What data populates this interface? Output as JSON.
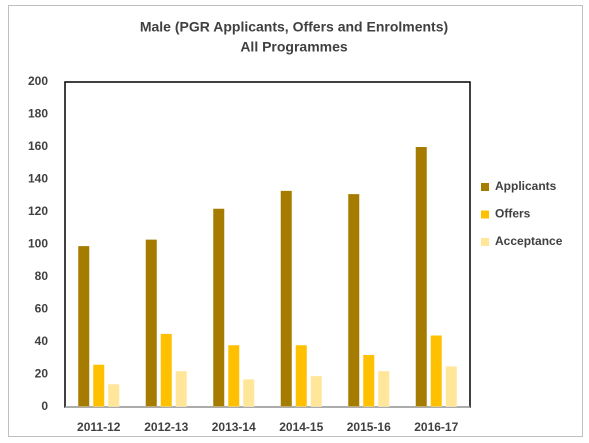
{
  "chart_data": {
    "type": "bar",
    "title": "Male (PGR Applicants, Offers  and Enrolments)",
    "subtitle": "All Programmes",
    "categories": [
      "2011-12",
      "2012-13",
      "2013-14",
      "2014-15",
      "2015-16",
      "2016-17"
    ],
    "series": [
      {
        "name": "Applicants",
        "color": "#a57c00",
        "values": [
          99,
          103,
          122,
          133,
          131,
          160
        ]
      },
      {
        "name": "Offers",
        "color": "#ffc000",
        "values": [
          26,
          45,
          38,
          38,
          32,
          44
        ]
      },
      {
        "name": "Acceptance",
        "color": "#ffe699",
        "values": [
          14,
          22,
          17,
          19,
          22,
          25
        ]
      }
    ],
    "ylim": [
      0,
      200
    ],
    "yticks": [
      0,
      20,
      40,
      60,
      80,
      100,
      120,
      140,
      160,
      180,
      200
    ],
    "grid": false,
    "legend": "right"
  }
}
